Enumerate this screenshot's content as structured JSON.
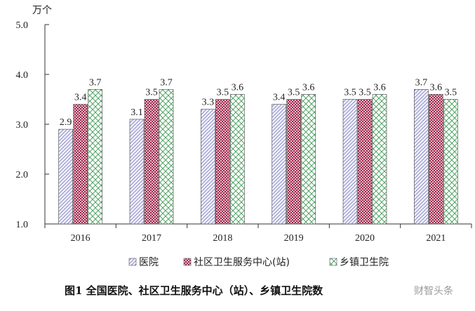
{
  "chart_data": {
    "type": "bar",
    "unit_label": "万个",
    "categories": [
      "2016",
      "2017",
      "2018",
      "2019",
      "2020",
      "2021"
    ],
    "series": [
      {
        "name": "医院",
        "values": [
          2.9,
          3.1,
          3.3,
          3.4,
          3.5,
          3.7
        ],
        "labels": [
          "2.9",
          "3.1",
          "3.3",
          "3.4",
          "3.5",
          "3.7"
        ],
        "pattern": "hatch-blue"
      },
      {
        "name": "社区卫生服务中心(站)",
        "values": [
          3.4,
          3.5,
          3.5,
          3.5,
          3.5,
          3.6
        ],
        "labels": [
          "3.4",
          "3.5",
          "3.5",
          "3.5",
          "3.5",
          "3.6"
        ],
        "pattern": "check-red"
      },
      {
        "name": "乡镇卫生院",
        "values": [
          3.7,
          3.7,
          3.6,
          3.6,
          3.6,
          3.5
        ],
        "labels": [
          "3.7",
          "3.7",
          "3.6",
          "3.6",
          "3.6",
          "3.5"
        ],
        "pattern": "lattice-green"
      }
    ],
    "ylim": [
      1.0,
      5.0
    ],
    "yticks": [
      "1.0",
      "2.0",
      "3.0",
      "4.0",
      "5.0"
    ],
    "legend_position": "bottom",
    "grid": false,
    "title": "图1 全国医院、社区卫生服务中心（站）、乡镇卫生院数",
    "watermark": "财智头条"
  },
  "colors": {
    "hatch-blue": "#8e8ec8",
    "check-red": "#9b2c4d",
    "lattice-green": "#3f9a55",
    "axis": "#333333"
  }
}
